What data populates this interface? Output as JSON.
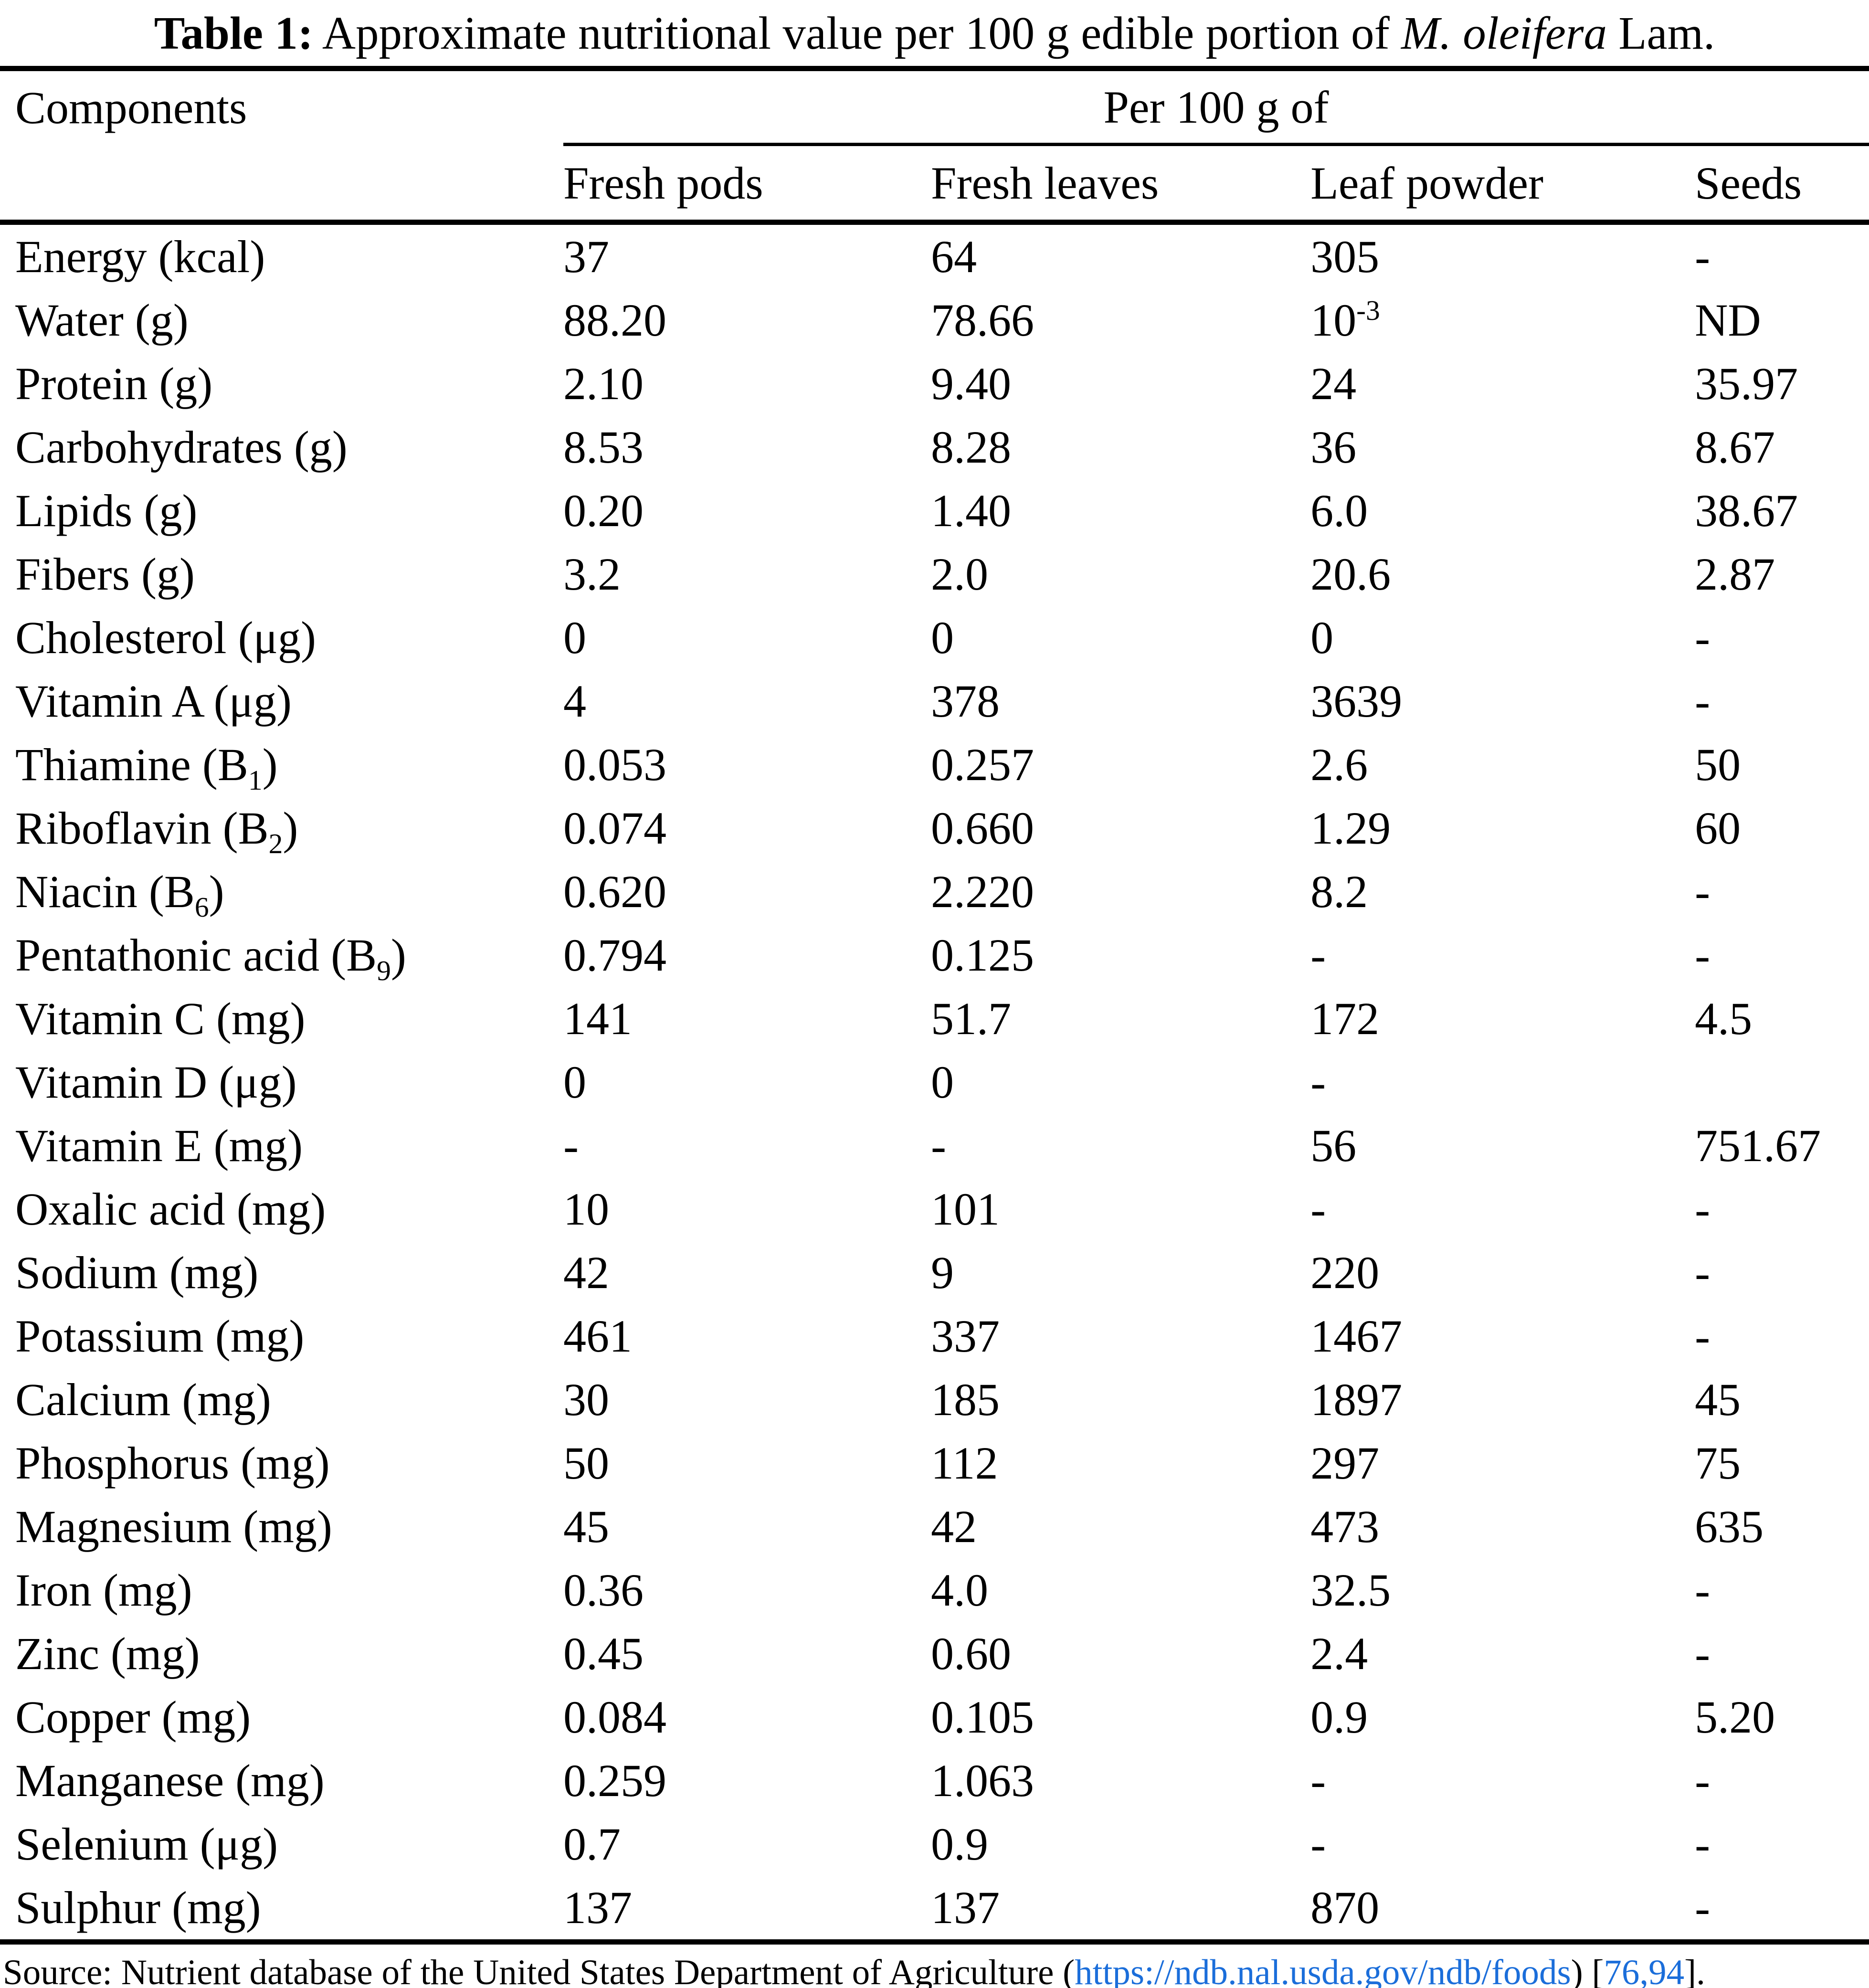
{
  "title": {
    "label": "Table 1:",
    "text": " Approximate nutritional value per 100 g edible portion of ",
    "species": "M. oleifera",
    "suffix": " Lam."
  },
  "table": {
    "col1_header": "Components",
    "group_header": "Per 100 g of",
    "sub_headers": [
      "Fresh pods",
      "Fresh leaves",
      "Leaf powder",
      "Seeds"
    ],
    "rows": [
      {
        "component": "Energy (kcal)",
        "values": [
          "37",
          "64",
          "305",
          "-"
        ]
      },
      {
        "component": "Water (g)",
        "values": [
          "88.20",
          "78.66",
          "10^{-3}",
          "ND"
        ]
      },
      {
        "component": "Protein (g)",
        "values": [
          "2.10",
          "9.40",
          "24",
          "35.97"
        ]
      },
      {
        "component": "Carbohydrates (g)",
        "values": [
          "8.53",
          "8.28",
          "36",
          "8.67"
        ]
      },
      {
        "component": "Lipids (g)",
        "values": [
          "0.20",
          "1.40",
          "6.0",
          "38.67"
        ]
      },
      {
        "component": "Fibers (g)",
        "values": [
          "3.2",
          "2.0",
          "20.6",
          "2.87"
        ]
      },
      {
        "component": "Cholesterol (μg)",
        "values": [
          "0",
          "0",
          "0",
          "-"
        ]
      },
      {
        "component": "Vitamin A (μg)",
        "values": [
          "4",
          "378",
          "3639",
          "-"
        ]
      },
      {
        "component": "Thiamine (B_{1})",
        "values": [
          "0.053",
          "0.257",
          "2.6",
          "50"
        ]
      },
      {
        "component": "Riboflavin (B_{2})",
        "values": [
          "0.074",
          "0.660",
          "1.29",
          "60"
        ]
      },
      {
        "component": "Niacin (B_{6})",
        "values": [
          "0.620",
          "2.220",
          "8.2",
          "-"
        ]
      },
      {
        "component": "Pentathonic acid (B_{9})",
        "values": [
          "0.794",
          "0.125",
          "-",
          "-"
        ]
      },
      {
        "component": "Vitamin C (mg)",
        "values": [
          "141",
          "51.7",
          "172",
          "4.5"
        ]
      },
      {
        "component": "Vitamin D (μg)",
        "values": [
          "0",
          "0",
          "-",
          ""
        ]
      },
      {
        "component": "Vitamin E (mg)",
        "values": [
          "-",
          "-",
          "56",
          "751.67"
        ]
      },
      {
        "component": "Oxalic acid (mg)",
        "values": [
          "10",
          "101",
          "-",
          "-"
        ]
      },
      {
        "component": "Sodium (mg)",
        "values": [
          "42",
          "9",
          "220",
          "-"
        ]
      },
      {
        "component": "Potassium (mg)",
        "values": [
          "461",
          "337",
          "1467",
          "-"
        ]
      },
      {
        "component": "Calcium (mg)",
        "values": [
          "30",
          "185",
          "1897",
          "45"
        ]
      },
      {
        "component": "Phosphorus (mg)",
        "values": [
          "50",
          "112",
          "297",
          "75"
        ]
      },
      {
        "component": "Magnesium (mg)",
        "values": [
          "45",
          "42",
          "473",
          "635"
        ]
      },
      {
        "component": "Iron (mg)",
        "values": [
          "0.36",
          "4.0",
          "32.5",
          "-"
        ]
      },
      {
        "component": "Zinc (mg)",
        "values": [
          "0.45",
          "0.60",
          "2.4",
          "-"
        ]
      },
      {
        "component": "Copper (mg)",
        "values": [
          "0.084",
          "0.105",
          "0.9",
          "5.20"
        ]
      },
      {
        "component": "Manganese (mg)",
        "values": [
          "0.259",
          "1.063",
          "-",
          "-"
        ]
      },
      {
        "component": "Selenium (μg)",
        "values": [
          "0.7",
          "0.9",
          "-",
          "-"
        ]
      },
      {
        "component": "Sulphur (mg)",
        "values": [
          "137",
          "137",
          "870",
          "-"
        ]
      }
    ]
  },
  "footer": {
    "prefix": "Source: Nutrient database of the United States Department of Agriculture (",
    "link": "https://ndb.nal.usda.gov/ndb/foods",
    "mid": ") [",
    "refs": "76,94",
    "suffix": "].",
    "link_color": "#1b6eda"
  }
}
